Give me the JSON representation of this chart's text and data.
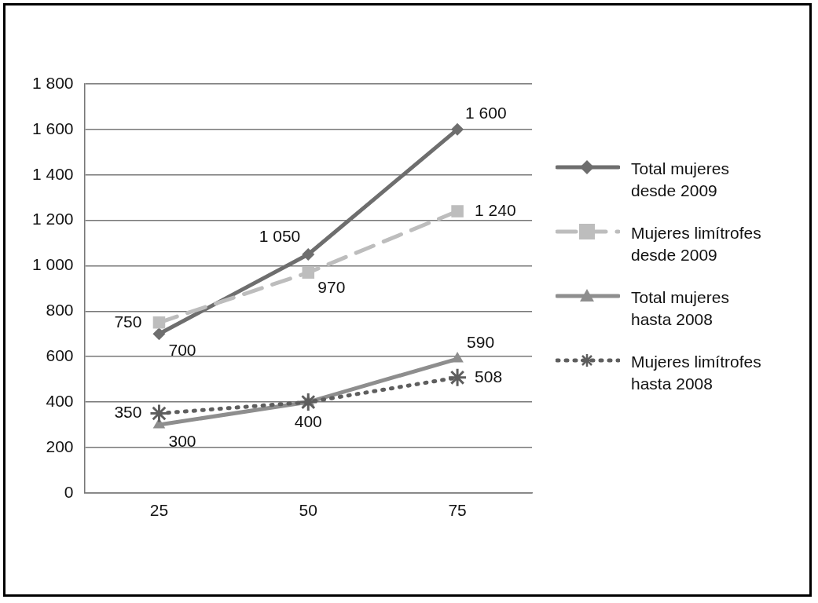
{
  "chart_data": {
    "type": "line",
    "categories": [
      "25",
      "50",
      "75"
    ],
    "series": [
      {
        "name": "Total mujeres desde 2009",
        "color": "#6e6e6e",
        "values": [
          700,
          1050,
          1600
        ],
        "marker": "diamond",
        "line_style": "solid",
        "value_labels": [
          "700",
          "1 050",
          "1 600"
        ]
      },
      {
        "name": "Mujeres limítrofes desde 2009",
        "color": "#bdbdbd",
        "values": [
          750,
          970,
          1240
        ],
        "marker": "square",
        "line_style": "dashed",
        "value_labels": [
          "750",
          "970",
          "1 240"
        ]
      },
      {
        "name": "Total mujeres hasta 2008",
        "color": "#8e8e8e",
        "values": [
          300,
          400,
          590
        ],
        "marker": "triangle",
        "line_style": "solid",
        "value_labels": [
          "300",
          "400",
          "590"
        ]
      },
      {
        "name": "Mujeres limítrofes hasta 2008",
        "color": "#5e5e5e",
        "values": [
          350,
          400,
          508
        ],
        "marker": "cross",
        "line_style": "dotted",
        "value_labels": [
          "350",
          null,
          "508"
        ]
      }
    ],
    "ylim": [
      0,
      1800
    ],
    "yticks": [
      0,
      200,
      400,
      600,
      800,
      {
        "value": 1000,
        "label": "1 000"
      },
      {
        "value": 1200,
        "label": "1 200"
      },
      {
        "value": 1400,
        "label": "1 400"
      },
      {
        "value": 1600,
        "label": "1 600"
      },
      {
        "value": 1800,
        "label": "1 800"
      }
    ],
    "grid": "y",
    "legend": "right"
  }
}
